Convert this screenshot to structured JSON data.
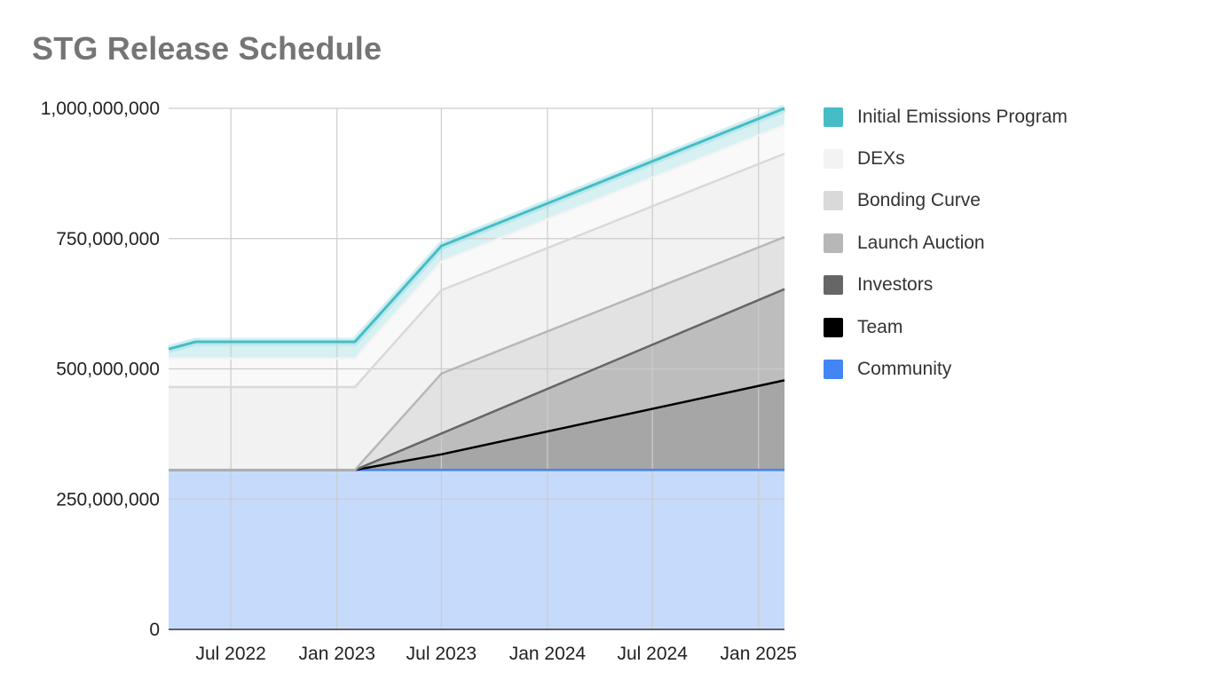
{
  "chart_data": {
    "type": "area",
    "stacked": true,
    "title": "STG Release Schedule",
    "xlabel": "",
    "ylabel": "",
    "x_range": [
      "2022-03-15",
      "2025-02-15"
    ],
    "ylim": [
      0,
      1000000000
    ],
    "y_ticks": [
      0,
      250000000,
      500000000,
      750000000,
      1000000000
    ],
    "y_tick_labels": [
      "0",
      "250,000,000",
      "500,000,000",
      "750,000,000",
      "1,000,000,000"
    ],
    "x_ticks": [
      "2022-07-01",
      "2023-01-01",
      "2023-07-01",
      "2024-01-01",
      "2024-07-01",
      "2025-01-01"
    ],
    "x_tick_labels": [
      "Jul 2022",
      "Jan 2023",
      "Jul 2023",
      "Jan 2024",
      "Jul 2024",
      "Jan 2025"
    ],
    "grid": true,
    "legend_position": "right",
    "x": [
      "2022-03-15",
      "2022-05-01",
      "2023-01-01",
      "2023-02-01",
      "2023-07-01",
      "2025-02-15"
    ],
    "series": [
      {
        "name": "Community",
        "color": "#4285f4",
        "fill": "#c6dafb",
        "values": [
          306000000,
          306000000,
          306000000,
          306000000,
          306000000,
          306000000
        ]
      },
      {
        "name": "Team",
        "color": "#000000",
        "fill": "#a6a6a6",
        "values": [
          0,
          0,
          0,
          0,
          30000000,
          172000000
        ]
      },
      {
        "name": "Investors",
        "color": "#666666",
        "fill": "#bdbdbd",
        "values": [
          0,
          0,
          0,
          0,
          40000000,
          175000000
        ]
      },
      {
        "name": "Launch Auction",
        "color": "#b7b7b7",
        "fill": "#e2e2e2",
        "values": [
          0,
          0,
          0,
          0,
          115000000,
          100000000
        ]
      },
      {
        "name": "Bonding Curve",
        "color": "#d9d9d9",
        "fill": "#f2f2f2",
        "values": [
          159000000,
          159000000,
          159000000,
          159000000,
          160000000,
          160000000
        ]
      },
      {
        "name": "DEXs",
        "color": "#f3f3f3",
        "fill": "#f9f9f9",
        "values": [
          55000000,
          55000000,
          55000000,
          55000000,
          55000000,
          55000000
        ]
      },
      {
        "name": "Initial Emissions Program",
        "color": "#46bdc6",
        "fill": "#d7f1f3",
        "values": [
          18000000,
          32000000,
          32000000,
          32000000,
          30000000,
          32000000
        ]
      }
    ]
  }
}
